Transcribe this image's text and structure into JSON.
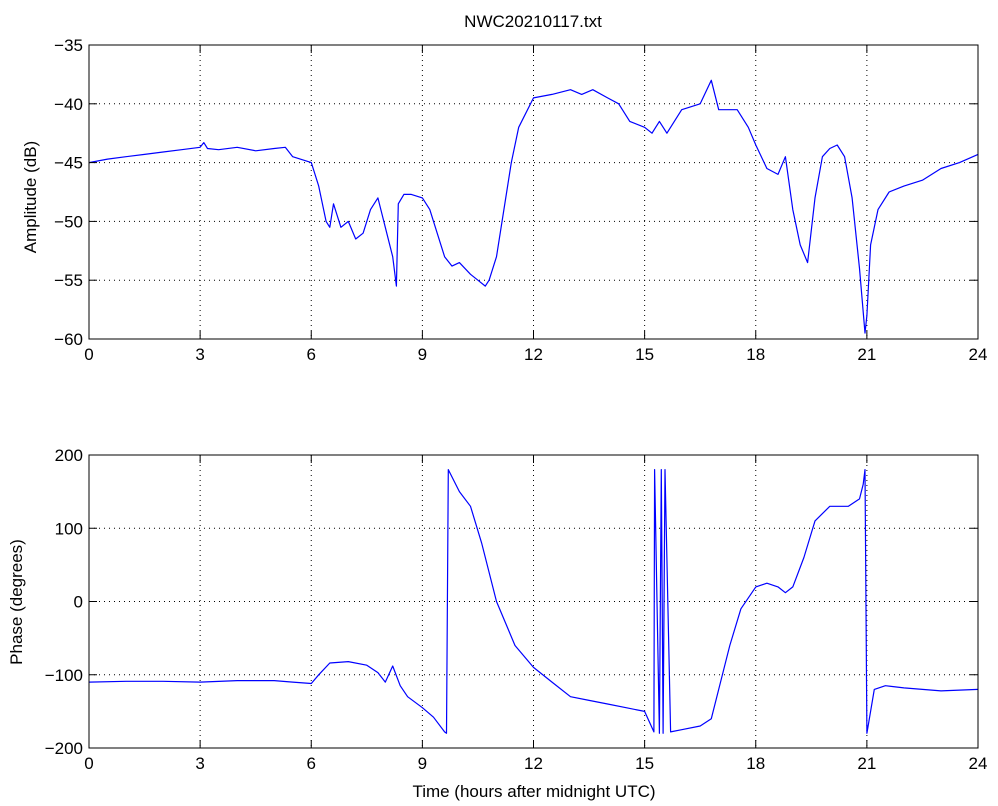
{
  "figure": {
    "title": "NWC20210117.txt",
    "line_color": "#0000ff"
  },
  "chart_data": [
    {
      "type": "line",
      "title": "NWC20210117.txt",
      "xlabel": "",
      "ylabel": "Amplitude (dB)",
      "xlim": [
        0,
        24
      ],
      "ylim": [
        -60,
        -35
      ],
      "x_ticks": [
        0,
        3,
        6,
        9,
        12,
        15,
        18,
        21,
        24
      ],
      "y_ticks": [
        -60,
        -55,
        -50,
        -45,
        -40,
        -35
      ],
      "grid": true,
      "series": [
        {
          "x": [
            0,
            0.5,
            1,
            1.5,
            2,
            2.5,
            3,
            3.1,
            3.2,
            3.5,
            4,
            4.5,
            5,
            5.3,
            5.5,
            6,
            6.2,
            6.4,
            6.5,
            6.6,
            6.8,
            7,
            7.2,
            7.4,
            7.6,
            7.8,
            8,
            8.2,
            8.3,
            8.35,
            8.5,
            8.7,
            9,
            9.2,
            9.4,
            9.6,
            9.8,
            10,
            10.3,
            10.5,
            10.7,
            10.8,
            11,
            11.2,
            11.4,
            11.6,
            12,
            12.5,
            13,
            13.3,
            13.6,
            14,
            14.3,
            14.6,
            15,
            15.2,
            15.4,
            15.6,
            16,
            16.5,
            16.8,
            17,
            17.2,
            17.5,
            17.8,
            18,
            18.3,
            18.6,
            18.8,
            19,
            19.2,
            19.4,
            19.6,
            19.8,
            20,
            20.2,
            20.4,
            20.6,
            20.8,
            20.95,
            21,
            21.1,
            21.3,
            21.6,
            22,
            22.5,
            23,
            23.5,
            24
          ],
          "y": [
            -45,
            -44.7,
            -44.5,
            -44.3,
            -44.1,
            -43.9,
            -43.7,
            -43.3,
            -43.8,
            -43.9,
            -43.7,
            -44,
            -43.8,
            -43.7,
            -44.5,
            -45,
            -47,
            -50,
            -50.5,
            -48.5,
            -50.5,
            -50,
            -51.5,
            -51,
            -49,
            -48,
            -50.5,
            -53,
            -55.5,
            -48.5,
            -47.7,
            -47.7,
            -48,
            -49,
            -51,
            -53,
            -53.8,
            -53.5,
            -54.5,
            -55,
            -55.5,
            -55,
            -53,
            -49,
            -45,
            -42,
            -39.5,
            -39.2,
            -38.8,
            -39.2,
            -38.8,
            -39.5,
            -40,
            -41.5,
            -42,
            -42.5,
            -41.5,
            -42.5,
            -40.5,
            -40,
            -38,
            -40.5,
            -40.5,
            -40.5,
            -42,
            -43.5,
            -45.5,
            -46,
            -44.5,
            -49,
            -52,
            -53.5,
            -48,
            -44.5,
            -43.8,
            -43.5,
            -44.5,
            -48,
            -54,
            -59.5,
            -58,
            -52,
            -49,
            -47.5,
            -47,
            -46.5,
            -45.5,
            -45,
            -44.3
          ]
        }
      ]
    },
    {
      "type": "line",
      "title": "",
      "xlabel": "Time (hours after midnight UTC)",
      "ylabel": "Phase (degrees)",
      "xlim": [
        0,
        24
      ],
      "ylim": [
        -200,
        200
      ],
      "x_ticks": [
        0,
        3,
        6,
        9,
        12,
        15,
        18,
        21,
        24
      ],
      "y_ticks": [
        -200,
        -100,
        0,
        100,
        200
      ],
      "grid": true,
      "series": [
        {
          "x": [
            0,
            1,
            2,
            3,
            4,
            5,
            5.5,
            6,
            6.2,
            6.5,
            7,
            7.5,
            7.8,
            8,
            8.2,
            8.4,
            8.6,
            9,
            9.3,
            9.6,
            9.65,
            9.7,
            10,
            10.3,
            10.6,
            11,
            11.5,
            12,
            12.5,
            13,
            13.5,
            14,
            14.5,
            15,
            15.25,
            15.27,
            15.4,
            15.45,
            15.5,
            15.55,
            15.7,
            16,
            16.5,
            16.8,
            17,
            17.3,
            17.6,
            18,
            18.3,
            18.6,
            18.8,
            19,
            19.3,
            19.6,
            20,
            20.5,
            20.8,
            20.9,
            20.95,
            21,
            21.2,
            21.5,
            22,
            23,
            24
          ],
          "y": [
            -110,
            -109,
            -109,
            -110,
            -108,
            -108,
            -110,
            -112,
            -100,
            -84,
            -82,
            -87,
            -97,
            -110,
            -88,
            -115,
            -130,
            -145,
            -158,
            -178,
            -180,
            180,
            150,
            130,
            80,
            0,
            -60,
            -90,
            -110,
            -130,
            -135,
            -140,
            -145,
            -150,
            -178,
            180,
            -180,
            180,
            -180,
            180,
            -178,
            -175,
            -170,
            -160,
            -120,
            -60,
            -10,
            20,
            25,
            20,
            12,
            20,
            60,
            110,
            130,
            130,
            140,
            160,
            180,
            -180,
            -120,
            -115,
            -118,
            -122,
            -120
          ]
        }
      ]
    }
  ]
}
